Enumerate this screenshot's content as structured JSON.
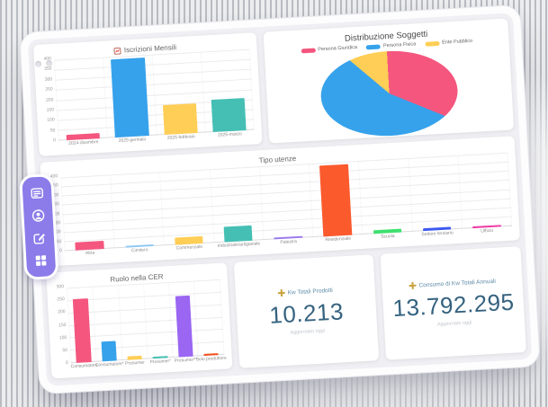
{
  "sidebar": {
    "background": "#8b7cea",
    "items": [
      {
        "name": "table-card-icon"
      },
      {
        "name": "user-circle-icon"
      },
      {
        "name": "edit-icon"
      },
      {
        "name": "apps-grid-icon"
      }
    ]
  },
  "chart_data": [
    {
      "id": "iscrizioni",
      "type": "bar",
      "title": "Iscrizioni Mensili",
      "title_icon": "bar-chart-icon",
      "categories": [
        "2024-dicembre",
        "2025-gennaio",
        "2025-febbraio",
        "2025-marzo"
      ],
      "values": [
        25,
        390,
        150,
        160
      ],
      "colors": [
        "#f4567e",
        "#36a2eb",
        "#ffce56",
        "#45bfb4"
      ],
      "ylim": [
        0,
        400
      ],
      "ytick_step": 50,
      "grid": true,
      "legend_position": "none"
    },
    {
      "id": "soggetti",
      "type": "pie",
      "title": "Distribuzione Soggetti",
      "labels": [
        "Persona Giuridica",
        "Persona Fisica",
        "Ente Pubblico"
      ],
      "values": [
        32,
        55,
        13
      ],
      "unit": "percent",
      "colors": [
        "#f4567e",
        "#36a2eb",
        "#ffce56"
      ],
      "legend_position": "top"
    },
    {
      "id": "utenze",
      "type": "bar",
      "title": "Tipo utenze",
      "categories": [
        "Altra",
        "Cimitero",
        "Commerciale",
        "Industriale/artigianale",
        "Palestra",
        "Residenziale",
        "Scuola",
        "Settore terziario",
        "Ufficio"
      ],
      "values": [
        45,
        6,
        40,
        85,
        6,
        390,
        18,
        15,
        12
      ],
      "colors": [
        "#f4567e",
        "#8fc9f5",
        "#ffce56",
        "#45bfb4",
        "#9b7bf0",
        "#fb5a2d",
        "#3fe06e",
        "#3d5af1",
        "#f03ba5"
      ],
      "ylim": [
        0,
        400
      ],
      "ytick_step": 50,
      "grid": true,
      "legend_position": "none"
    },
    {
      "id": "ruolo",
      "type": "bar",
      "title": "Ruolo nella CER",
      "categories": [
        "Consumatore",
        "Consumatore*",
        "Prosumer",
        "Prosumer*",
        "Prosumer**",
        "Solo produttore"
      ],
      "values": [
        255,
        80,
        15,
        6,
        245,
        6
      ],
      "colors": [
        "#f4567e",
        "#36a2eb",
        "#ffce56",
        "#45bfb4",
        "#9a66f2",
        "#f4511e"
      ],
      "ylim": [
        0,
        300
      ],
      "ytick_step": 50,
      "grid": true,
      "legend_position": "none"
    }
  ],
  "stat_cards": [
    {
      "icon": "sparkle-icon",
      "icon_color": "#c9a13b",
      "title": "Kw Totali Prodotti",
      "value": "10.213",
      "subtitle": "Aggiornato oggi"
    },
    {
      "icon": "sparkle-icon",
      "icon_color": "#c9a13b",
      "title": "Consumo di Kw Totali Annuali",
      "value": "13.792.295",
      "subtitle": "Aggiornato oggi"
    }
  ],
  "colors": {
    "stat_value": "#35627f",
    "stat_title": "#5e8ca7",
    "screen_bg": "#f0f0f4",
    "card_bg": "#ffffff"
  }
}
